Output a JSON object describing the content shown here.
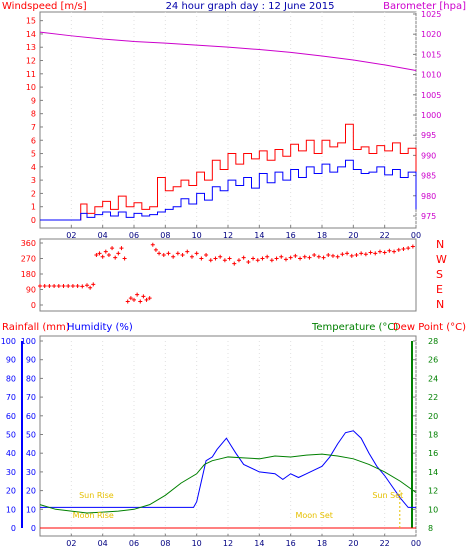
{
  "chart_data": [
    {
      "type": "line",
      "title": "24 hour graph day : 12 June 2015",
      "ylabel_left": "Windspeed [m/s]",
      "ylabel_right": "Barometer [hpa]",
      "x_ticks": [
        "02",
        "04",
        "06",
        "08",
        "10",
        "12",
        "14",
        "16",
        "18",
        "20",
        "22",
        "00"
      ],
      "ylim_left": [
        0,
        15.5
      ],
      "ylim_right": [
        974,
        1025
      ],
      "yticks_left": [
        0,
        1,
        2,
        3,
        4,
        5,
        6,
        7,
        8,
        9,
        10,
        11,
        12,
        13,
        14,
        15
      ],
      "yticks_right": [
        975,
        980,
        985,
        990,
        995,
        1000,
        1005,
        1010,
        1015,
        1020,
        1025
      ],
      "colors": {
        "gust": "#ff0000",
        "average": "#0000ff",
        "barometer": "#cc00cc"
      },
      "series": [
        {
          "axis": "right",
          "key": "barometer",
          "x": [
            0,
            2,
            4,
            6,
            8,
            10,
            12,
            14,
            16,
            18,
            20,
            22,
            24
          ],
          "values": [
            1020.5,
            1019.6,
            1018.8,
            1018.2,
            1017.8,
            1017.3,
            1016.8,
            1016.2,
            1015.5,
            1014.6,
            1013.6,
            1012.4,
            1011.0
          ]
        },
        {
          "axis": "left",
          "key": "gust",
          "x": [
            0,
            2.5,
            2.6,
            3.0,
            3.5,
            4.0,
            4.5,
            5.0,
            5.5,
            6.0,
            6.5,
            7.0,
            7.5,
            8.0,
            8.5,
            9.0,
            9.5,
            10.0,
            10.5,
            11.0,
            11.5,
            12.0,
            12.5,
            13.0,
            13.5,
            14.0,
            14.5,
            15.0,
            15.5,
            16.0,
            16.5,
            17.0,
            17.5,
            18.0,
            18.5,
            19.0,
            19.5,
            20.0,
            20.5,
            21.0,
            21.5,
            22.0,
            22.5,
            23.0,
            23.5,
            24.0
          ],
          "values": [
            0,
            0,
            1.2,
            0.5,
            1.0,
            1.4,
            0.8,
            1.8,
            1.0,
            1.3,
            0.8,
            1.0,
            3.2,
            2.2,
            2.5,
            3.0,
            2.6,
            3.6,
            3.0,
            4.5,
            3.8,
            5.0,
            4.2,
            5.0,
            4.6,
            5.2,
            4.5,
            5.3,
            4.8,
            5.7,
            5.2,
            6.0,
            5.0,
            6.0,
            5.5,
            5.8,
            7.2,
            5.3,
            5.5,
            5.0,
            5.6,
            5.2,
            5.8,
            5.0,
            5.4,
            1.5
          ]
        },
        {
          "axis": "left",
          "key": "average",
          "x": [
            0,
            2.5,
            2.6,
            3.0,
            3.5,
            4.0,
            4.5,
            5.0,
            5.5,
            6.0,
            6.5,
            7.0,
            7.5,
            8.0,
            8.5,
            9.0,
            9.5,
            10.0,
            10.5,
            11.0,
            11.5,
            12.0,
            12.5,
            13.0,
            13.5,
            14.0,
            14.5,
            15.0,
            15.5,
            16.0,
            16.5,
            17.0,
            17.5,
            18.0,
            18.5,
            19.0,
            19.5,
            20.0,
            20.5,
            21.0,
            21.5,
            22.0,
            22.5,
            23.0,
            23.5,
            24.0
          ],
          "values": [
            0,
            0,
            0.5,
            0.2,
            0.4,
            0.6,
            0.3,
            0.6,
            0.2,
            0.5,
            0.3,
            0.4,
            0.6,
            0.8,
            1.0,
            1.6,
            1.2,
            2.0,
            1.5,
            2.5,
            2.2,
            3.0,
            2.6,
            3.2,
            2.4,
            3.5,
            2.8,
            3.6,
            3.0,
            3.8,
            3.2,
            4.0,
            3.5,
            4.2,
            3.6,
            4.0,
            4.5,
            3.8,
            3.5,
            3.6,
            4.0,
            3.4,
            3.8,
            3.2,
            3.6,
            0.8
          ]
        }
      ]
    },
    {
      "type": "scatter",
      "title": "",
      "yticks": [
        0,
        90,
        180,
        270,
        360
      ],
      "ylim": [
        0,
        360
      ],
      "compass_labels": [
        "N",
        "W",
        "S",
        "E",
        "N"
      ],
      "colors": {
        "points": "#ff0000",
        "compass": "#ff0000"
      },
      "series": [
        {
          "name": "",
          "x": [
            0.0,
            0.3,
            0.6,
            0.9,
            1.2,
            1.5,
            1.8,
            2.1,
            2.4,
            2.7,
            3.0,
            3.2,
            3.4,
            3.6,
            3.8,
            4.0,
            4.2,
            4.4,
            4.6,
            4.8,
            5.0,
            5.2,
            5.4,
            5.6,
            5.8,
            6.0,
            6.2,
            6.4,
            6.6,
            6.8,
            7.0,
            7.2,
            7.4,
            7.6,
            7.9,
            8.2,
            8.5,
            8.8,
            9.1,
            9.4,
            9.7,
            10.0,
            10.3,
            10.6,
            10.9,
            11.2,
            11.5,
            11.8,
            12.1,
            12.4,
            12.7,
            13.0,
            13.3,
            13.6,
            13.9,
            14.2,
            14.5,
            14.8,
            15.1,
            15.4,
            15.7,
            16.0,
            16.3,
            16.6,
            16.9,
            17.2,
            17.5,
            17.8,
            18.1,
            18.4,
            18.7,
            19.0,
            19.3,
            19.6,
            19.9,
            20.2,
            20.5,
            20.8,
            21.1,
            21.4,
            21.7,
            22.0,
            22.3,
            22.6,
            22.9,
            23.2,
            23.5,
            23.8
          ],
          "values": [
            110,
            110,
            110,
            110,
            110,
            110,
            110,
            110,
            110,
            108,
            115,
            100,
            120,
            290,
            300,
            280,
            310,
            290,
            330,
            275,
            300,
            330,
            270,
            20,
            40,
            30,
            60,
            20,
            50,
            30,
            40,
            350,
            320,
            300,
            290,
            300,
            280,
            300,
            290,
            310,
            280,
            300,
            270,
            290,
            260,
            270,
            280,
            260,
            270,
            240,
            260,
            275,
            250,
            270,
            260,
            270,
            280,
            260,
            270,
            280,
            265,
            275,
            285,
            270,
            280,
            275,
            290,
            280,
            275,
            290,
            285,
            280,
            295,
            300,
            285,
            290,
            300,
            295,
            305,
            300,
            310,
            305,
            315,
            310,
            320,
            325,
            330,
            340
          ]
        }
      ]
    },
    {
      "type": "line",
      "title": "",
      "ylabel_left_1": "Rainfall (mm)",
      "ylabel_left_2": "Humidity (%)",
      "ylabel_right_1": "Temperature (°C)",
      "ylabel_right_2": "Dew Point (°C)",
      "x_ticks": [
        "02",
        "04",
        "06",
        "08",
        "10",
        "12",
        "14",
        "16",
        "18",
        "20",
        "22",
        "00"
      ],
      "yticks_rain": [
        0,
        10,
        20,
        30,
        40,
        50,
        60,
        70,
        80,
        90,
        100
      ],
      "yticks_humidity": [
        0,
        10,
        20,
        30,
        40,
        50,
        60,
        70,
        80,
        90,
        100
      ],
      "yticks_temp": [
        8,
        10,
        12,
        14,
        16,
        18,
        20,
        22,
        24,
        26,
        28
      ],
      "ylim_humidity": [
        0,
        100
      ],
      "ylim_temp": [
        8,
        28
      ],
      "annotations": [
        "Sun Rise",
        "Moon Rise",
        "Moon Set",
        "Sun Set"
      ],
      "annotation_x": [
        3.6,
        3.4,
        17.5,
        22.2
      ],
      "colors": {
        "humidity": "#0000ff",
        "temperature": "#008000",
        "rain_axis": "#ff0000",
        "dew_axis": "#ff0000",
        "annotation": "#e6c000"
      },
      "series": [
        {
          "key": "humidity",
          "x": [
            0,
            1,
            2,
            3,
            4,
            5,
            6,
            7,
            8,
            9,
            9.8,
            10,
            10.3,
            10.6,
            11,
            11.3,
            11.6,
            11.9,
            12.2,
            12.5,
            13,
            14,
            15,
            15.5,
            16,
            16.5,
            17,
            17.5,
            18,
            18.5,
            19,
            19.5,
            20,
            20.5,
            21,
            21.5,
            22,
            22.5,
            23,
            23.5,
            24
          ],
          "values": [
            11,
            11,
            11,
            11,
            11,
            11,
            11,
            11,
            11,
            11,
            11,
            14,
            25,
            36,
            38,
            42,
            45,
            48,
            44,
            40,
            34,
            30,
            29,
            26,
            29,
            27,
            29,
            31,
            33,
            38,
            45,
            51,
            52,
            48,
            40,
            33,
            28,
            22,
            16,
            11,
            11
          ]
        },
        {
          "key": "temperature",
          "x": [
            0,
            1,
            2,
            3,
            4,
            5,
            6,
            7,
            8,
            9,
            10,
            10.5,
            11,
            11.5,
            12,
            13,
            14,
            15,
            16,
            17,
            18,
            19,
            20,
            21,
            22,
            23,
            24
          ],
          "values": [
            10.5,
            10.0,
            9.8,
            9.6,
            9.7,
            9.8,
            10.0,
            10.5,
            11.5,
            12.8,
            13.8,
            14.8,
            15.2,
            15.4,
            15.6,
            15.5,
            15.4,
            15.7,
            15.6,
            15.8,
            15.9,
            15.7,
            15.4,
            14.8,
            14.0,
            13.0,
            11.8
          ]
        }
      ]
    }
  ]
}
